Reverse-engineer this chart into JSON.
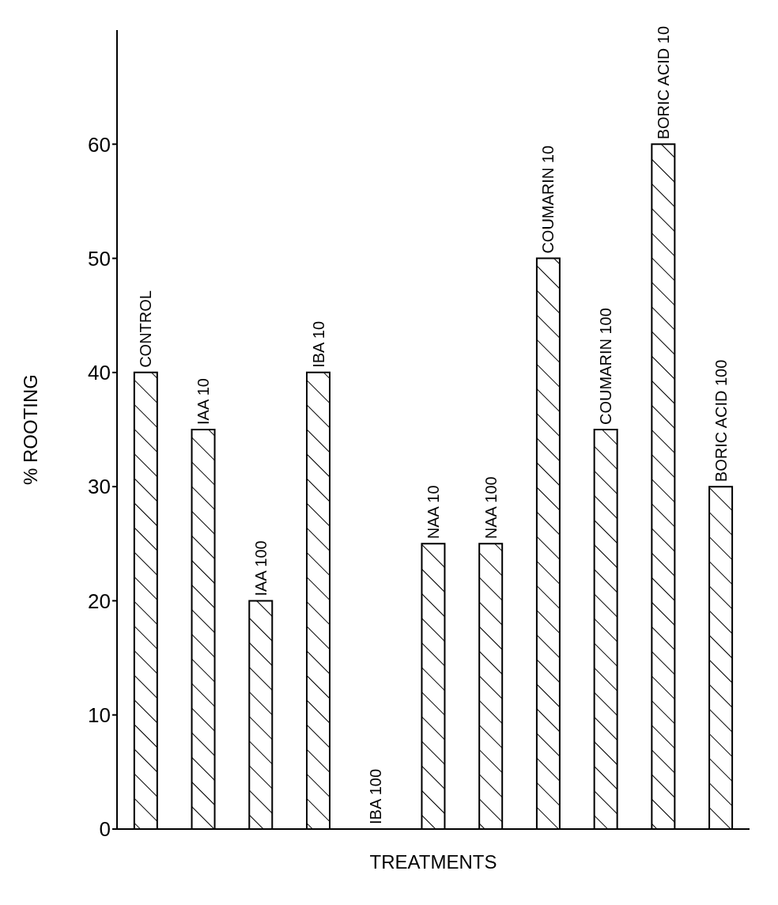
{
  "chart_data": {
    "type": "bar",
    "xlabel": "TREATMENTS",
    "ylabel": "% ROOTING",
    "categories": [
      "CONTROL",
      "IAA 10",
      "IAA 100",
      "IBA 10",
      "IBA 100",
      "NAA 10",
      "NAA 100",
      "COUMARIN 10",
      "COUMARIN 100",
      "BORIC ACID 10",
      "BORIC ACID 100"
    ],
    "values": [
      40,
      35,
      20,
      40,
      0,
      25,
      25,
      50,
      35,
      60,
      30
    ],
    "color": "#000000",
    "ylim": [
      0,
      70
    ],
    "yticks": [
      0,
      10,
      20,
      30,
      40,
      50,
      60
    ],
    "grid": false
  }
}
